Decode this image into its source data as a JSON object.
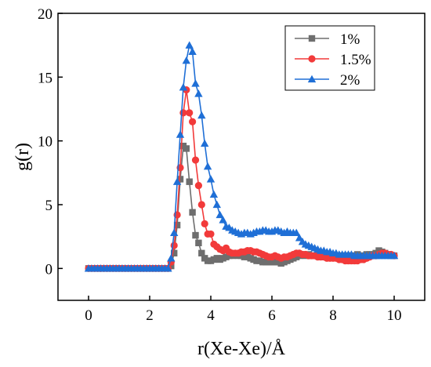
{
  "chart_data": {
    "type": "line",
    "title": "",
    "xlabel": "r(Xe-Xe)/Å",
    "ylabel": "g(r)",
    "xlim": [
      -1,
      11
    ],
    "ylim": [
      -2.5,
      20
    ],
    "xticks": [
      0,
      2,
      4,
      6,
      8,
      10
    ],
    "yticks": [
      0,
      5,
      10,
      15,
      20
    ],
    "x_tick_labels": [
      "0",
      "2",
      "4",
      "6",
      "8",
      "10"
    ],
    "y_tick_labels": [
      "0",
      "5",
      "10",
      "15",
      "20"
    ],
    "grid": false,
    "legend_position": "top-right",
    "series": [
      {
        "name": "1%",
        "color": "#6e6e6e",
        "marker": "square",
        "x": [
          0,
          0.1,
          0.2,
          0.3,
          0.4,
          0.5,
          0.6,
          0.7,
          0.8,
          0.9,
          1.0,
          1.1,
          1.2,
          1.3,
          1.4,
          1.5,
          1.6,
          1.7,
          1.8,
          1.9,
          2.0,
          2.1,
          2.2,
          2.3,
          2.4,
          2.5,
          2.6,
          2.7,
          2.8,
          2.9,
          3.0,
          3.1,
          3.2,
          3.3,
          3.4,
          3.5,
          3.6,
          3.7,
          3.8,
          3.9,
          4.0,
          4.1,
          4.2,
          4.3,
          4.4,
          4.5,
          4.6,
          4.7,
          4.8,
          4.9,
          5.0,
          5.1,
          5.2,
          5.3,
          5.4,
          5.5,
          5.6,
          5.7,
          5.8,
          5.9,
          6.0,
          6.1,
          6.2,
          6.3,
          6.4,
          6.5,
          6.6,
          6.7,
          6.8,
          6.9,
          7.0,
          7.1,
          7.2,
          7.3,
          7.4,
          7.5,
          7.6,
          7.7,
          7.8,
          7.9,
          8.0,
          8.1,
          8.2,
          8.3,
          8.4,
          8.5,
          8.6,
          8.7,
          8.8,
          8.9,
          9.0,
          9.1,
          9.2,
          9.3,
          9.4,
          9.5,
          9.6,
          9.7,
          9.8,
          9.9,
          10.0
        ],
        "y": [
          0,
          0,
          0,
          0,
          0,
          0,
          0,
          0,
          0,
          0,
          0,
          0,
          0,
          0,
          0,
          0,
          0,
          0,
          0,
          0,
          0,
          0,
          0,
          0,
          0,
          0,
          0,
          0.2,
          1.2,
          3.4,
          7.0,
          9.6,
          9.4,
          6.8,
          4.4,
          2.6,
          2.0,
          1.2,
          0.8,
          0.6,
          0.6,
          0.7,
          0.8,
          0.7,
          0.8,
          0.9,
          1.0,
          1.0,
          1.1,
          1.0,
          1.0,
          0.9,
          0.9,
          0.8,
          0.7,
          0.6,
          0.6,
          0.5,
          0.5,
          0.5,
          0.5,
          0.5,
          0.5,
          0.4,
          0.5,
          0.6,
          0.7,
          0.8,
          0.9,
          1.0,
          1.1,
          1.0,
          1.1,
          1.0,
          1.0,
          1.0,
          0.9,
          1.0,
          1.0,
          1.0,
          1.0,
          1.0,
          1.0,
          1.0,
          1.0,
          1.0,
          1.0,
          1.0,
          1.1,
          1.0,
          1.0,
          1.1,
          1.1,
          1.1,
          1.2,
          1.4,
          1.3,
          1.2,
          1.1,
          1.0,
          1.0
        ]
      },
      {
        "name": "1.5%",
        "color": "#f23a3a",
        "marker": "circle",
        "x": [
          0,
          0.1,
          0.2,
          0.3,
          0.4,
          0.5,
          0.6,
          0.7,
          0.8,
          0.9,
          1.0,
          1.1,
          1.2,
          1.3,
          1.4,
          1.5,
          1.6,
          1.7,
          1.8,
          1.9,
          2.0,
          2.1,
          2.2,
          2.3,
          2.4,
          2.5,
          2.6,
          2.7,
          2.8,
          2.9,
          3.0,
          3.1,
          3.2,
          3.3,
          3.4,
          3.5,
          3.6,
          3.7,
          3.8,
          3.9,
          4.0,
          4.1,
          4.2,
          4.3,
          4.4,
          4.5,
          4.6,
          4.7,
          4.8,
          4.9,
          5.0,
          5.1,
          5.2,
          5.3,
          5.4,
          5.5,
          5.6,
          5.7,
          5.8,
          5.9,
          6.0,
          6.1,
          6.2,
          6.3,
          6.4,
          6.5,
          6.6,
          6.7,
          6.8,
          6.9,
          7.0,
          7.1,
          7.2,
          7.3,
          7.4,
          7.5,
          7.6,
          7.7,
          7.8,
          7.9,
          8.0,
          8.1,
          8.2,
          8.3,
          8.4,
          8.5,
          8.6,
          8.7,
          8.8,
          8.9,
          9.0,
          9.1,
          9.2,
          9.3,
          9.4,
          9.5,
          9.6,
          9.7,
          9.8,
          9.9,
          10.0
        ],
        "y": [
          0,
          0,
          0,
          0,
          0,
          0,
          0,
          0,
          0,
          0,
          0,
          0,
          0,
          0,
          0,
          0,
          0,
          0,
          0,
          0,
          0,
          0,
          0,
          0,
          0,
          0,
          0,
          0.5,
          1.8,
          4.2,
          7.9,
          12.2,
          14.0,
          12.2,
          11.5,
          8.5,
          6.5,
          5.0,
          3.5,
          2.7,
          2.7,
          1.9,
          1.7,
          1.5,
          1.4,
          1.6,
          1.3,
          1.2,
          1.2,
          1.2,
          1.3,
          1.3,
          1.4,
          1.4,
          1.3,
          1.3,
          1.2,
          1.1,
          1.0,
          0.9,
          0.9,
          1.0,
          0.9,
          0.8,
          0.9,
          0.9,
          1.0,
          1.1,
          1.2,
          1.2,
          1.1,
          1.1,
          1.0,
          1.0,
          1.0,
          0.9,
          0.9,
          0.9,
          0.8,
          0.8,
          0.8,
          0.8,
          0.7,
          0.7,
          0.6,
          0.6,
          0.6,
          0.6,
          0.6,
          0.7,
          0.7,
          0.8,
          0.9,
          1.0,
          1.0,
          1.1,
          1.2,
          1.2,
          1.1,
          1.1,
          1.0
        ]
      },
      {
        "name": "2%",
        "color": "#1f6fd6",
        "marker": "triangle",
        "x": [
          0,
          0.1,
          0.2,
          0.3,
          0.4,
          0.5,
          0.6,
          0.7,
          0.8,
          0.9,
          1.0,
          1.1,
          1.2,
          1.3,
          1.4,
          1.5,
          1.6,
          1.7,
          1.8,
          1.9,
          2.0,
          2.1,
          2.2,
          2.3,
          2.4,
          2.5,
          2.6,
          2.7,
          2.8,
          2.9,
          3.0,
          3.1,
          3.2,
          3.3,
          3.4,
          3.5,
          3.6,
          3.7,
          3.8,
          3.9,
          4.0,
          4.1,
          4.2,
          4.3,
          4.4,
          4.5,
          4.6,
          4.7,
          4.8,
          4.9,
          5.0,
          5.1,
          5.2,
          5.3,
          5.4,
          5.5,
          5.6,
          5.7,
          5.8,
          5.9,
          6.0,
          6.1,
          6.2,
          6.3,
          6.4,
          6.5,
          6.6,
          6.7,
          6.8,
          6.9,
          7.0,
          7.1,
          7.2,
          7.3,
          7.4,
          7.5,
          7.6,
          7.7,
          7.8,
          7.9,
          8.0,
          8.1,
          8.2,
          8.3,
          8.4,
          8.5,
          8.6,
          8.7,
          8.8,
          8.9,
          9.0,
          9.1,
          9.2,
          9.3,
          9.4,
          9.5,
          9.6,
          9.7,
          9.8,
          9.9,
          10.0
        ],
        "y": [
          0,
          0,
          0,
          0,
          0,
          0,
          0,
          0,
          0,
          0,
          0,
          0,
          0,
          0,
          0,
          0,
          0,
          0,
          0,
          0,
          0,
          0,
          0,
          0,
          0,
          0,
          0,
          0.8,
          2.8,
          6.8,
          10.5,
          14.2,
          16.3,
          17.5,
          17.0,
          14.5,
          13.7,
          12.0,
          9.8,
          8.0,
          7.0,
          5.8,
          5.0,
          4.2,
          3.8,
          3.3,
          3.2,
          3.0,
          2.9,
          2.8,
          2.7,
          2.8,
          2.8,
          2.7,
          2.8,
          2.9,
          2.9,
          3.0,
          3.0,
          2.9,
          2.9,
          3.0,
          3.0,
          2.9,
          2.8,
          2.9,
          2.8,
          2.8,
          2.8,
          2.4,
          2.1,
          1.9,
          1.8,
          1.7,
          1.6,
          1.5,
          1.4,
          1.4,
          1.3,
          1.3,
          1.2,
          1.2,
          1.1,
          1.1,
          1.1,
          1.1,
          1.1,
          1.0,
          1.0,
          1.0,
          1.0,
          1.0,
          1.0,
          1.0,
          1.0,
          1.0,
          1.0,
          1.0,
          1.0,
          1.0,
          1.0
        ]
      }
    ]
  }
}
